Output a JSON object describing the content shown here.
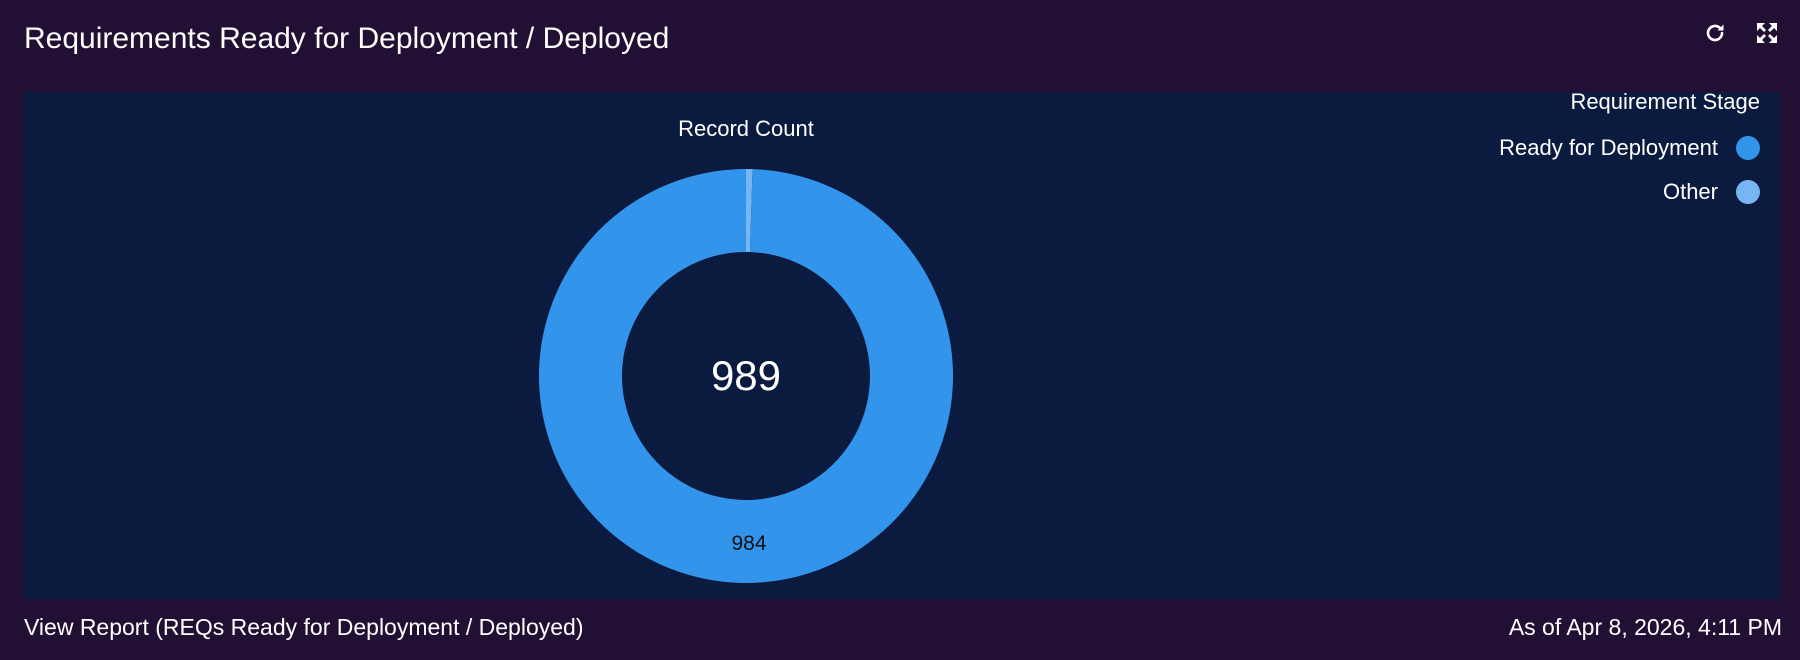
{
  "header": {
    "title": "Requirements Ready for Deployment / Deployed",
    "refresh_icon": "refresh-icon",
    "expand_icon": "expand-icon"
  },
  "legend": {
    "title": "Requirement Stage",
    "items": [
      {
        "label": "Ready for Deployment",
        "color": "#3394ec"
      },
      {
        "label": "Other",
        "color": "#78b6f3"
      }
    ]
  },
  "footer": {
    "report_link": "View Report (REQs Ready for Deployment / Deployed)",
    "timestamp": "As of Apr 8, 2026, 4:11 PM"
  },
  "colors": {
    "background": "#211033",
    "chart_background": "#0b1a3f",
    "primary": "#3394ec",
    "secondary": "#78b6f3"
  },
  "chart_data": {
    "type": "pie",
    "donut": true,
    "title": "Record Count",
    "center_total": "989",
    "categories": [
      "Ready for Deployment",
      "Other"
    ],
    "values": [
      984,
      5
    ],
    "data_labels": [
      "984",
      ""
    ],
    "legend_title": "Requirement Stage",
    "legend_position": "top-right"
  }
}
